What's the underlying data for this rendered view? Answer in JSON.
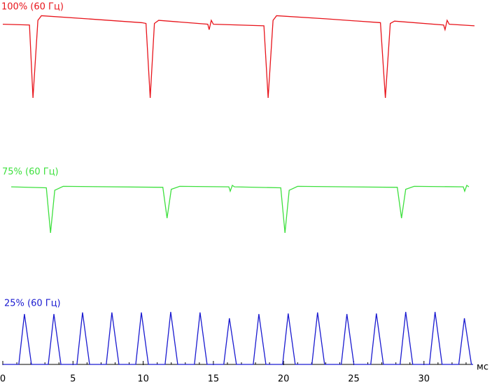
{
  "chart_data": {
    "type": "line",
    "xlim": [
      0,
      33.5
    ],
    "xticks": [
      0,
      5,
      10,
      15,
      20,
      25,
      30
    ],
    "xminorticks": [
      1,
      2,
      3,
      4,
      6,
      7,
      8,
      9,
      11,
      12,
      13,
      14,
      16,
      17,
      18,
      19,
      21,
      22,
      23,
      24,
      26,
      27,
      28,
      29,
      31,
      32,
      33
    ],
    "x_label": "мс",
    "series": [
      {
        "name": "100% (60 Гц)",
        "color": "#e8141b",
        "ylim": [
          0,
          110
        ],
        "x": [
          0,
          1.9,
          2.15,
          2.5,
          2.75,
          6,
          9.9,
          10.2,
          10.5,
          10.8,
          11.1,
          14.6,
          14.7,
          14.85,
          15.0,
          18.6,
          18.9,
          19.25,
          19.5,
          23,
          26.9,
          27.25,
          27.6,
          27.9,
          31.4,
          31.5,
          31.65,
          31.8,
          33.6
        ],
        "values": [
          95,
          94,
          0,
          100,
          106,
          102,
          97,
          96,
          0,
          96,
          100,
          95,
          88,
          100,
          95,
          93,
          0,
          100,
          106,
          102,
          97,
          0,
          96,
          99,
          94,
          88,
          100,
          95,
          93
        ]
      },
      {
        "name": "75% (60 Гц)",
        "color": "#3ee03e",
        "ylim": [
          0,
          110
        ],
        "x": [
          0.6,
          3.1,
          3.4,
          3.7,
          4.3,
          11.4,
          11.7,
          12.0,
          12.6,
          16.1,
          16.2,
          16.35,
          16.5,
          19.8,
          20.1,
          20.4,
          21,
          28.1,
          28.4,
          28.7,
          29.3,
          32.8,
          32.9,
          33.05,
          33.2
        ],
        "values": [
          97,
          95,
          3,
          90,
          98,
          96,
          33,
          92,
          98,
          97,
          88,
          100,
          97,
          95,
          3,
          90,
          98,
          96,
          33,
          92,
          98,
          97,
          88,
          100,
          97
        ]
      },
      {
        "name": "25% (60 Гц)",
        "color": "#1a1ad0",
        "ylim": [
          0,
          100
        ],
        "x": [
          0,
          1.14,
          1.54,
          2.04,
          3.24,
          3.64,
          4.14,
          5.28,
          5.68,
          6.18,
          7.37,
          7.77,
          8.27,
          9.47,
          9.87,
          10.37,
          11.56,
          11.96,
          12.46,
          13.65,
          14.05,
          14.55,
          15.74,
          16.14,
          16.64,
          17.84,
          18.24,
          18.74,
          19.93,
          20.33,
          20.83,
          22.02,
          22.42,
          22.92,
          24.11,
          24.51,
          25.01,
          26.21,
          26.61,
          27.11,
          28.3,
          28.7,
          29.2,
          30.39,
          30.79,
          31.29,
          32.48,
          32.88,
          33.38,
          33.5
        ],
        "values": [
          0,
          0,
          96,
          0,
          0,
          96,
          0,
          0,
          99,
          0,
          0,
          99,
          0,
          0,
          99,
          0,
          0,
          100,
          0,
          0,
          99,
          0,
          0,
          88,
          0,
          0,
          96,
          0,
          0,
          97,
          0,
          0,
          99,
          0,
          0,
          96,
          0,
          0,
          97,
          0,
          0,
          100,
          0,
          0,
          100,
          0,
          0,
          88,
          0,
          0
        ]
      }
    ]
  }
}
